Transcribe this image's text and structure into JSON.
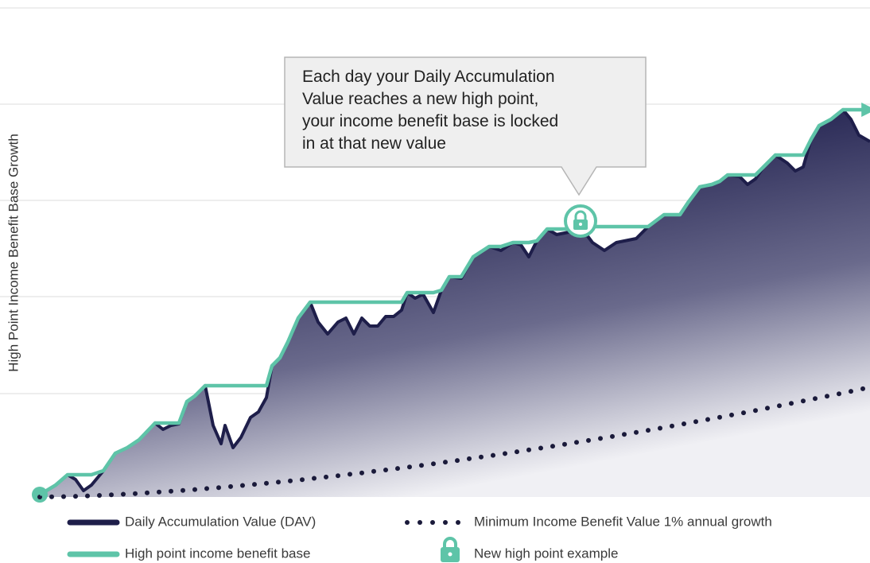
{
  "chart_data": {
    "type": "area",
    "y_label": "High Point Income Benefit Base Growth",
    "annotation": [
      "Each day your Daily Accumulation",
      "Value reaches a new high point,",
      "your income benefit base is locked",
      "in at that new value"
    ],
    "marker_label": "New high point example",
    "xlim": [
      0,
      1044
    ],
    "ylim": [
      0,
      615
    ],
    "yticks": [
      130,
      252,
      373,
      494,
      615
    ],
    "grid": true,
    "series": [
      {
        "name": "Daily Accumulation Value (DAV)",
        "color": "#1e1e4a",
        "style": "area",
        "x": [
          0,
          20,
          35,
          45,
          55,
          65,
          80,
          95,
          110,
          125,
          145,
          155,
          165,
          175,
          185,
          195,
          208,
          218,
          228,
          233,
          243,
          253,
          265,
          275,
          285,
          292,
          302,
          312,
          325,
          340,
          350,
          362,
          375,
          385,
          395,
          405,
          415,
          425,
          435,
          445,
          455,
          462,
          472,
          482,
          495,
          505,
          515,
          530,
          545,
          565,
          580,
          595,
          605,
          615,
          625,
          638,
          650,
          665,
          680,
          695,
          710,
          725,
          740,
          750,
          765,
          785,
          805,
          815,
          830,
          845,
          855,
          865,
          880,
          890,
          900,
          910,
          925,
          940,
          950,
          960,
          970,
          980,
          995,
          1010,
          1020,
          1030,
          1044
        ],
        "values": [
          3,
          15,
          28,
          22,
          8,
          15,
          33,
          55,
          62,
          72,
          93,
          85,
          90,
          92,
          120,
          127,
          140,
          90,
          67,
          90,
          62,
          75,
          100,
          107,
          125,
          165,
          175,
          195,
          225,
          245,
          220,
          205,
          220,
          225,
          205,
          225,
          215,
          215,
          227,
          227,
          235,
          257,
          250,
          255,
          232,
          260,
          277,
          275,
          302,
          315,
          310,
          320,
          317,
          302,
          322,
          337,
          330,
          333,
          340,
          320,
          310,
          320,
          323,
          325,
          340,
          355,
          355,
          370,
          390,
          393,
          397,
          405,
          403,
          393,
          400,
          415,
          430,
          420,
          410,
          415,
          450,
          467,
          475,
          487,
          475,
          455,
          447
        ]
      },
      {
        "name": "High point income benefit base",
        "color": "#5ec4a8",
        "style": "line",
        "x": [
          0,
          20,
          35,
          45,
          55,
          65,
          80,
          95,
          110,
          125,
          145,
          155,
          165,
          175,
          185,
          195,
          208,
          218,
          228,
          233,
          243,
          253,
          265,
          275,
          285,
          292,
          302,
          312,
          325,
          340,
          350,
          362,
          375,
          385,
          395,
          405,
          415,
          425,
          435,
          445,
          455,
          462,
          472,
          482,
          495,
          505,
          515,
          530,
          545,
          565,
          580,
          595,
          605,
          615,
          625,
          638,
          650,
          665,
          680,
          695,
          710,
          725,
          740,
          750,
          765,
          785,
          805,
          815,
          830,
          845,
          855,
          865,
          880,
          890,
          900,
          910,
          925,
          940,
          950,
          960,
          970,
          980,
          995,
          1010,
          1020,
          1030,
          1044
        ],
        "values": [
          3,
          15,
          28,
          28,
          28,
          28,
          33,
          55,
          62,
          72,
          93,
          93,
          93,
          93,
          120,
          127,
          140,
          140,
          140,
          140,
          140,
          140,
          140,
          140,
          140,
          165,
          175,
          195,
          225,
          245,
          245,
          245,
          245,
          245,
          245,
          245,
          245,
          245,
          245,
          245,
          245,
          257,
          257,
          257,
          257,
          260,
          277,
          277,
          302,
          315,
          315,
          320,
          320,
          320,
          322,
          337,
          337,
          337,
          340,
          340,
          340,
          340,
          340,
          340,
          340,
          355,
          355,
          370,
          390,
          393,
          397,
          405,
          405,
          405,
          405,
          415,
          430,
          430,
          430,
          430,
          450,
          467,
          475,
          487,
          487,
          487,
          487
        ]
      },
      {
        "name": "Minimum Income Benefit Value 1% annual growth",
        "color": "#1a1a3a",
        "style": "dots",
        "x": [
          0,
          15,
          30,
          45,
          60,
          75,
          90,
          105,
          120,
          135,
          150,
          165,
          180,
          195,
          210,
          225,
          240,
          255,
          270,
          285,
          300,
          315,
          330,
          345,
          360,
          375,
          390,
          405,
          420,
          435,
          450,
          465,
          480,
          495,
          510,
          525,
          540,
          555,
          570,
          585,
          600,
          615,
          630,
          645,
          660,
          675,
          690,
          705,
          720,
          735,
          750,
          765,
          780,
          795,
          810,
          825,
          840,
          855,
          870,
          885,
          900,
          915,
          930,
          945,
          960,
          975,
          990,
          1005,
          1020,
          1035
        ],
        "values": [
          0,
          0.2,
          0.5,
          0.9,
          1.4,
          2.0,
          2.7,
          3.5,
          4.3,
          5.2,
          6.2,
          7.2,
          8.3,
          9.4,
          10.6,
          11.8,
          13.1,
          14.5,
          15.9,
          17.3,
          18.8,
          20.3,
          21.8,
          23.5,
          25.1,
          26.8,
          28.6,
          30.3,
          32.2,
          34.0,
          35.9,
          37.8,
          39.8,
          41.8,
          43.9,
          45.9,
          48.1,
          50.2,
          52.4,
          54.6,
          56.9,
          59.2,
          61.5,
          63.9,
          66.3,
          68.7,
          71.1,
          73.6,
          76.1,
          78.7,
          81.3,
          83.9,
          86.5,
          89.3,
          92.0,
          94.7,
          97.5,
          100.3,
          103.1,
          105.9,
          108.8,
          111.8,
          114.7,
          117.7,
          120.7,
          123.7,
          126.8,
          129.8,
          132.9,
          136.1
        ]
      }
    ]
  }
}
